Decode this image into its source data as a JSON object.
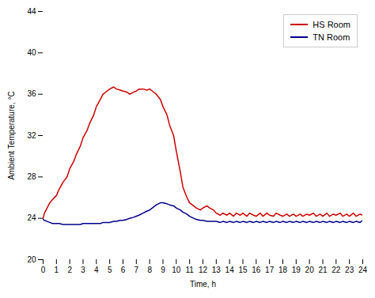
{
  "chart_data": {
    "type": "line",
    "xlabel": "Time, h",
    "ylabel": "Ambient Temperature, °C",
    "xlim": [
      0,
      24
    ],
    "ylim": [
      20,
      44
    ],
    "xticks": [
      0,
      1,
      2,
      3,
      4,
      5,
      6,
      7,
      8,
      9,
      10,
      11,
      12,
      13,
      14,
      15,
      16,
      17,
      18,
      19,
      20,
      21,
      22,
      23,
      24
    ],
    "yticks": [
      20,
      24,
      28,
      32,
      36,
      40,
      44
    ],
    "grid": false,
    "legend": "upper right",
    "x": [
      0,
      0.1,
      0.3,
      0.5,
      0.7,
      1.0,
      1.2,
      1.5,
      1.8,
      2.0,
      2.3,
      2.5,
      2.8,
      3.0,
      3.3,
      3.5,
      3.8,
      4.0,
      4.3,
      4.5,
      4.8,
      5.0,
      5.3,
      5.5,
      5.8,
      6.0,
      6.3,
      6.5,
      6.8,
      7.0,
      7.2,
      7.5,
      7.8,
      8.0,
      8.2,
      8.5,
      8.8,
      9.0,
      9.3,
      9.5,
      9.8,
      10.0,
      10.3,
      10.5,
      10.8,
      11.0,
      11.3,
      11.5,
      11.8,
      12.0,
      12.3,
      12.5,
      12.8,
      13.0,
      13.3,
      13.5,
      13.8,
      14.0,
      14.3,
      14.5,
      14.8,
      15.0,
      15.3,
      15.5,
      15.8,
      16.0,
      16.3,
      16.5,
      16.8,
      17.0,
      17.3,
      17.5,
      17.8,
      18.0,
      18.3,
      18.5,
      18.8,
      19.0,
      19.3,
      19.5,
      19.8,
      20.0,
      20.3,
      20.5,
      20.8,
      21.0,
      21.3,
      21.5,
      21.8,
      22.0,
      22.3,
      22.5,
      22.8,
      23.0,
      23.3,
      23.5,
      23.8,
      24.0
    ],
    "series": [
      {
        "name": "HS Room",
        "color": "#cc0000",
        "values": [
          24.0,
          24.5,
          25.0,
          25.5,
          25.8,
          26.2,
          26.8,
          27.5,
          28.0,
          28.8,
          29.5,
          30.2,
          31.0,
          31.8,
          32.5,
          33.2,
          34.0,
          34.8,
          35.5,
          36.0,
          36.3,
          36.5,
          36.7,
          36.5,
          36.4,
          36.3,
          36.2,
          36.0,
          36.2,
          36.3,
          36.5,
          36.5,
          36.4,
          36.5,
          36.3,
          36.0,
          35.5,
          34.8,
          34.0,
          33.0,
          32.0,
          30.5,
          28.5,
          27.0,
          26.0,
          25.5,
          25.2,
          25.0,
          24.8,
          25.0,
          25.2,
          25.0,
          24.8,
          24.5,
          24.3,
          24.5,
          24.3,
          24.5,
          24.2,
          24.5,
          24.3,
          24.5,
          24.2,
          24.5,
          24.3,
          24.2,
          24.5,
          24.2,
          24.5,
          24.3,
          24.2,
          24.5,
          24.3,
          24.2,
          24.4,
          24.2,
          24.4,
          24.2,
          24.4,
          24.2,
          24.4,
          24.3,
          24.5,
          24.2,
          24.4,
          24.2,
          24.5,
          24.2,
          24.4,
          24.3,
          24.5,
          24.2,
          24.4,
          24.2,
          24.5,
          24.2,
          24.4,
          24.3
        ]
      },
      {
        "name": "TN Room",
        "color": "#00008b",
        "values": [
          23.9,
          23.8,
          23.7,
          23.6,
          23.5,
          23.5,
          23.5,
          23.4,
          23.4,
          23.4,
          23.4,
          23.4,
          23.4,
          23.5,
          23.5,
          23.5,
          23.5,
          23.5,
          23.5,
          23.6,
          23.6,
          23.6,
          23.7,
          23.7,
          23.8,
          23.8,
          23.9,
          24.0,
          24.1,
          24.2,
          24.3,
          24.5,
          24.7,
          24.8,
          25.0,
          25.3,
          25.5,
          25.5,
          25.4,
          25.3,
          25.2,
          25.0,
          24.8,
          24.6,
          24.4,
          24.2,
          24.0,
          23.9,
          23.8,
          23.8,
          23.7,
          23.7,
          23.7,
          23.7,
          23.6,
          23.7,
          23.6,
          23.7,
          23.6,
          23.7,
          23.6,
          23.7,
          23.6,
          23.7,
          23.6,
          23.7,
          23.6,
          23.7,
          23.6,
          23.7,
          23.6,
          23.7,
          23.6,
          23.7,
          23.6,
          23.7,
          23.6,
          23.7,
          23.6,
          23.7,
          23.6,
          23.7,
          23.6,
          23.7,
          23.6,
          23.7,
          23.6,
          23.7,
          23.6,
          23.7,
          23.6,
          23.7,
          23.6,
          23.7,
          23.6,
          23.7,
          23.6,
          23.8
        ]
      }
    ]
  }
}
